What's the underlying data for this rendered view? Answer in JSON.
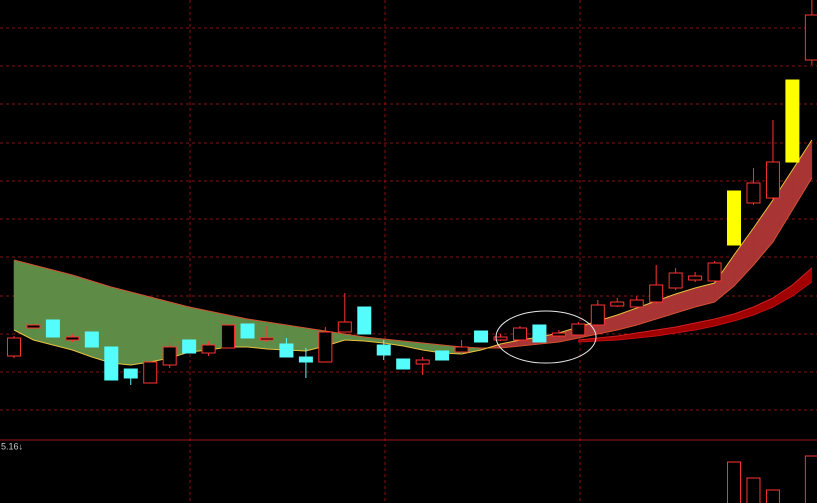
{
  "chart_data": {
    "type": "candlestick",
    "ylim": [
      0,
      44
    ],
    "open": [
      8.4,
      11.2,
      12.0,
      10.0,
      10.8,
      9.3,
      7.1,
      5.7,
      7.5,
      10.0,
      8.7,
      9.2,
      11.6,
      10.0,
      9.6,
      8.3,
      7.8,
      10.8,
      13.3,
      9.5,
      8.1,
      7.6,
      8.9,
      8.8,
      10.9,
      10.0,
      10.0,
      11.5,
      10.4,
      10.5,
      11.5,
      13.4,
      13.3,
      13.8,
      15.2,
      16.0,
      15.9,
      19.5,
      23.7,
      24.2,
      27.8,
      38.0
    ],
    "high": [
      10.4,
      11.8,
      12.0,
      10.6,
      10.8,
      9.3,
      7.1,
      7.8,
      9.8,
      10.0,
      9.9,
      11.5,
      11.6,
      11.4,
      10.2,
      9.2,
      11.3,
      14.7,
      13.3,
      10.0,
      8.1,
      8.3,
      8.9,
      10.0,
      10.9,
      10.6,
      11.4,
      11.5,
      11.0,
      11.8,
      14.0,
      14.2,
      14.4,
      17.5,
      17.2,
      16.8,
      17.9,
      24.9,
      27.2,
      32.0,
      36.0,
      44.0
    ],
    "low": [
      8.2,
      11.0,
      10.3,
      9.8,
      9.3,
      6.0,
      5.5,
      5.7,
      7.2,
      8.7,
      8.4,
      9.2,
      10.2,
      9.8,
      8.3,
      6.2,
      7.8,
      10.8,
      10.6,
      8.0,
      7.1,
      6.5,
      8.0,
      8.6,
      9.8,
      9.9,
      10.0,
      9.8,
      10.3,
      10.4,
      11.4,
      13.3,
      13.2,
      13.6,
      15.0,
      15.8,
      15.8,
      19.5,
      23.5,
      24.0,
      27.8,
      37.5
    ],
    "close": [
      10.2,
      11.5,
      10.3,
      10.3,
      9.3,
      6.0,
      6.2,
      7.8,
      9.3,
      8.7,
      9.5,
      11.5,
      10.2,
      10.2,
      8.3,
      7.8,
      10.8,
      11.8,
      10.6,
      8.5,
      7.1,
      8.0,
      8.0,
      9.3,
      9.8,
      10.3,
      11.2,
      9.8,
      10.7,
      11.6,
      13.5,
      13.8,
      14.0,
      15.5,
      16.7,
      16.4,
      17.7,
      24.9,
      25.7,
      27.8,
      36.0,
      42.5
    ],
    "signal": [
      false,
      false,
      false,
      false,
      false,
      false,
      false,
      false,
      false,
      false,
      false,
      false,
      false,
      false,
      false,
      false,
      false,
      false,
      false,
      false,
      false,
      false,
      false,
      false,
      false,
      false,
      false,
      false,
      false,
      false,
      false,
      false,
      false,
      false,
      false,
      false,
      false,
      true,
      false,
      false,
      true,
      false
    ],
    "up_color": "#ff3232",
    "down_color": "#54fcfc",
    "signal_color": "#ffff00",
    "bands": [
      {
        "long": [
          18.0,
          17.5,
          17.0,
          16.5,
          15.9,
          15.3,
          14.8,
          14.3,
          13.8,
          13.3,
          12.9,
          12.5,
          12.1,
          11.8,
          11.5,
          11.2,
          10.9,
          10.6,
          10.3,
          10.1,
          9.9,
          9.7,
          9.5,
          9.3,
          9.2,
          9.2,
          9.4,
          9.6,
          9.8,
          10.2,
          10.6,
          11.0,
          11.5,
          12.1,
          12.7,
          13.3,
          13.8,
          15.4,
          17.5,
          19.8,
          23.0,
          26.2
        ],
        "short": [
          11.0,
          10.0,
          9.5,
          9.0,
          8.3,
          7.7,
          7.5,
          7.8,
          8.2,
          8.8,
          9.0,
          9.3,
          9.3,
          9.1,
          9.0,
          8.9,
          9.4,
          10.0,
          9.9,
          9.7,
          9.4,
          9.0,
          8.7,
          8.6,
          9.0,
          9.6,
          10.0,
          10.3,
          10.7,
          11.3,
          11.9,
          12.5,
          13.2,
          13.9,
          14.6,
          15.2,
          15.7,
          18.5,
          21.2,
          24.0,
          27.0,
          30.0
        ],
        "long_above_color": "#5e8c46",
        "short_above_color": "#a83434",
        "long_line_color": "#d05030",
        "short_line_color": "#e8c040"
      },
      {
        "long": [
          null,
          null,
          null,
          null,
          null,
          null,
          null,
          null,
          null,
          null,
          null,
          null,
          null,
          null,
          null,
          null,
          null,
          null,
          null,
          null,
          null,
          null,
          null,
          null,
          null,
          null,
          null,
          null,
          null,
          9.8,
          9.9,
          10.0,
          10.2,
          10.4,
          10.7,
          11.0,
          11.4,
          11.9,
          12.5,
          13.3,
          14.4,
          15.8
        ],
        "short": [
          null,
          null,
          null,
          null,
          null,
          null,
          null,
          null,
          null,
          null,
          null,
          null,
          null,
          null,
          null,
          null,
          null,
          null,
          null,
          null,
          null,
          null,
          null,
          null,
          null,
          null,
          null,
          null,
          null,
          10.0,
          10.2,
          10.4,
          10.7,
          11.0,
          11.3,
          11.7,
          12.1,
          12.6,
          13.3,
          14.2,
          15.5,
          17.2
        ],
        "long_above_color": "#a00000",
        "short_above_color": "#a00000",
        "long_line_color": "#c01010",
        "short_line_color": "#d02020"
      }
    ],
    "volume": {
      "values": [
        null,
        null,
        null,
        null,
        null,
        null,
        null,
        null,
        null,
        null,
        null,
        null,
        null,
        null,
        null,
        null,
        null,
        null,
        null,
        null,
        null,
        null,
        null,
        null,
        null,
        null,
        null,
        null,
        null,
        null,
        null,
        null,
        null,
        null,
        null,
        null,
        null,
        41,
        25,
        13,
        null,
        47
      ],
      "ylim": [
        0,
        60
      ]
    },
    "label": "5.16↓"
  }
}
